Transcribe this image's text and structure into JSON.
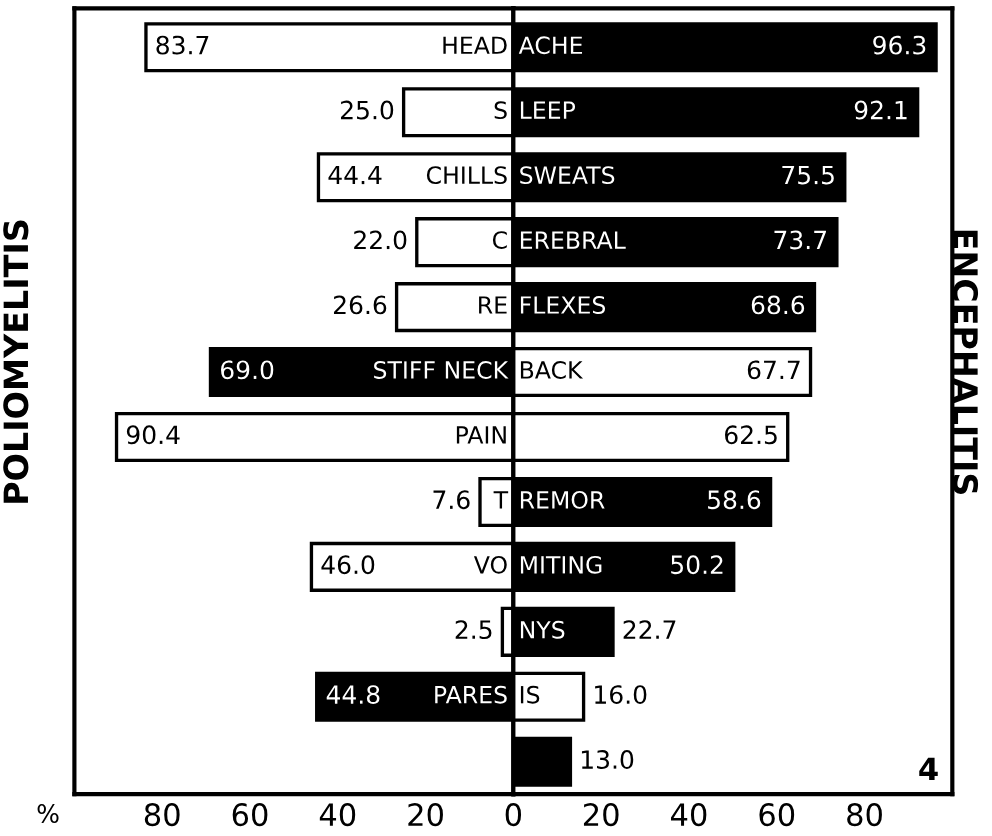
{
  "chart_data": [
    {
      "type": "bar",
      "orientation": "horizontal",
      "ylabel": "POLIOMYELITIS",
      "xlabel": "%",
      "categories": [
        "HEAD",
        "S",
        "CHILLS",
        "C",
        "RE",
        "STIFF NECK",
        "PAIN",
        "T",
        "VO",
        null,
        "PARES",
        null
      ],
      "series": [
        {
          "values": [
            83.7,
            25.0,
            44.4,
            22.0,
            26.6,
            69.0,
            90.4,
            7.6,
            46.0,
            2.5,
            44.8,
            null
          ],
          "value_labels": [
            "83.7",
            "25.0",
            "44.4",
            "22.0",
            "26.6",
            "69.0",
            "90.4",
            "7.6",
            "46.0",
            "2.5",
            "44.8",
            null
          ],
          "colors": [
            "#ffffff",
            "#ffffff",
            "#ffffff",
            "#ffffff",
            "#ffffff",
            "#000000",
            "#ffffff",
            "#ffffff",
            "#ffffff",
            "#ffffff",
            "#000000",
            "#ffffff"
          ]
        }
      ],
      "xlim": [
        100,
        0
      ],
      "xticks": [
        80,
        60,
        40,
        20
      ],
      "grid": false,
      "legend": false
    },
    {
      "type": "bar",
      "orientation": "horizontal",
      "ylabel": "ENCEPHALITIS",
      "categories": [
        "ACHE",
        "LEEP",
        "SWEATS",
        "EREBRAL",
        "FLEXES",
        "BACK",
        null,
        "REMOR",
        "MITING",
        "NYS",
        "IS",
        null
      ],
      "series": [
        {
          "values": [
            96.3,
            92.1,
            75.5,
            73.7,
            68.6,
            67.7,
            62.5,
            58.6,
            50.2,
            22.7,
            16.0,
            13.0
          ],
          "value_labels": [
            "96.3",
            "92.1",
            "75.5",
            "73.7",
            "68.6",
            "67.7",
            "62.5",
            "58.6",
            "50.2",
            "22.7",
            "16.0",
            "13.0"
          ],
          "colors": [
            "#000000",
            "#000000",
            "#000000",
            "#000000",
            "#000000",
            "#ffffff",
            "#ffffff",
            "#000000",
            "#000000",
            "#000000",
            "#ffffff",
            "#000000"
          ]
        }
      ],
      "xlim": [
        0,
        100
      ],
      "xticks": [
        0,
        20,
        40,
        60,
        80
      ],
      "annotations": [
        "4"
      ],
      "grid": false,
      "legend": false
    }
  ]
}
